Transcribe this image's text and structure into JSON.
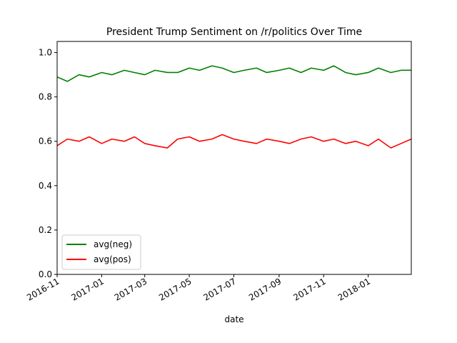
{
  "chart_data": {
    "type": "line",
    "title": "President Trump Sentiment on /r/politics Over Time",
    "xlabel": "date",
    "ylabel": "",
    "x_start": "2016-11-01",
    "x_end": "2018-03-01",
    "xlim": [
      "2016-11-01",
      "2018-03-01"
    ],
    "ylim": [
      0.0,
      1.05
    ],
    "yticks": [
      0.0,
      0.2,
      0.4,
      0.6,
      0.8,
      1.0
    ],
    "ytick_labels": [
      "0.0",
      "0.2",
      "0.4",
      "0.6",
      "0.8",
      "1.0"
    ],
    "xticks": [
      "2016-11-01",
      "2017-01-01",
      "2017-03-01",
      "2017-05-01",
      "2017-07-01",
      "2017-09-01",
      "2017-11-01",
      "2018-01-01"
    ],
    "xtick_labels": [
      "2016-11",
      "2017-01",
      "2017-03",
      "2017-05",
      "2017-07",
      "2017-09",
      "2017-11",
      "2018-01"
    ],
    "grid": false,
    "legend": "lower-left",
    "series": [
      {
        "name": "avg(neg)",
        "color": "#008000",
        "x": [
          "2016-11-01",
          "2016-11-15",
          "2016-12-01",
          "2016-12-15",
          "2017-01-01",
          "2017-01-15",
          "2017-02-01",
          "2017-02-15",
          "2017-03-01",
          "2017-03-15",
          "2017-04-01",
          "2017-04-15",
          "2017-05-01",
          "2017-05-15",
          "2017-06-01",
          "2017-06-15",
          "2017-07-01",
          "2017-07-15",
          "2017-08-01",
          "2017-08-15",
          "2017-09-01",
          "2017-09-15",
          "2017-10-01",
          "2017-10-15",
          "2017-11-01",
          "2017-11-15",
          "2017-12-01",
          "2017-12-15",
          "2018-01-01",
          "2018-01-15",
          "2018-02-01",
          "2018-02-15",
          "2018-03-01"
        ],
        "values": [
          0.89,
          0.87,
          0.9,
          0.89,
          0.91,
          0.9,
          0.92,
          0.91,
          0.9,
          0.92,
          0.91,
          0.91,
          0.93,
          0.92,
          0.94,
          0.93,
          0.91,
          0.92,
          0.93,
          0.91,
          0.92,
          0.93,
          0.91,
          0.93,
          0.92,
          0.94,
          0.91,
          0.9,
          0.91,
          0.93,
          0.91,
          0.92,
          0.92
        ]
      },
      {
        "name": "avg(pos)",
        "color": "#ff0000",
        "x": [
          "2016-11-01",
          "2016-11-15",
          "2016-12-01",
          "2016-12-15",
          "2017-01-01",
          "2017-01-15",
          "2017-02-01",
          "2017-02-15",
          "2017-03-01",
          "2017-03-15",
          "2017-04-01",
          "2017-04-15",
          "2017-05-01",
          "2017-05-15",
          "2017-06-01",
          "2017-06-15",
          "2017-07-01",
          "2017-07-15",
          "2017-08-01",
          "2017-08-15",
          "2017-09-01",
          "2017-09-15",
          "2017-10-01",
          "2017-10-15",
          "2017-11-01",
          "2017-11-15",
          "2017-12-01",
          "2017-12-15",
          "2018-01-01",
          "2018-01-15",
          "2018-02-01",
          "2018-02-15",
          "2018-03-01"
        ],
        "values": [
          0.58,
          0.61,
          0.6,
          0.62,
          0.59,
          0.61,
          0.6,
          0.62,
          0.59,
          0.58,
          0.57,
          0.61,
          0.62,
          0.6,
          0.61,
          0.63,
          0.61,
          0.6,
          0.59,
          0.61,
          0.6,
          0.59,
          0.61,
          0.62,
          0.6,
          0.61,
          0.59,
          0.6,
          0.58,
          0.61,
          0.57,
          0.59,
          0.61
        ]
      }
    ]
  }
}
